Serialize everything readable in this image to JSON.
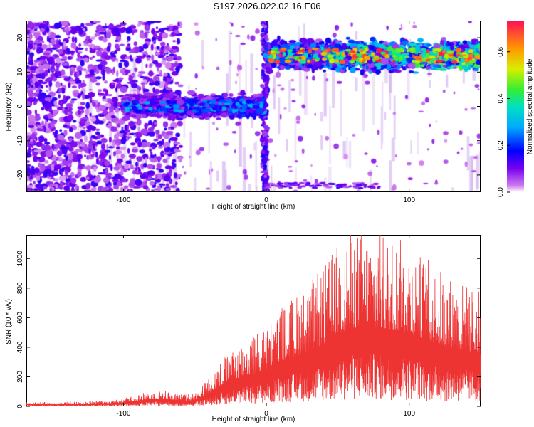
{
  "page_title": "S197.2026.022.02.16.E06",
  "chart_data": [
    {
      "type": "heatmap",
      "title": "",
      "xlabel": "Height of straight line (km)",
      "ylabel": "Frequency (Hz)",
      "xlim": [
        -168,
        150
      ],
      "ylim": [
        -25,
        25
      ],
      "x_ticks": [
        -100,
        0,
        100
      ],
      "x_tick_labels": [
        "-100",
        "0",
        "100"
      ],
      "y_ticks": [
        -20,
        -10,
        0,
        10,
        20
      ],
      "y_tick_labels": [
        "-20",
        "-10",
        "0",
        "10",
        "20"
      ],
      "grid": false,
      "colorbar": {
        "label": "Normalized spectral amplitude",
        "range": [
          0.0,
          0.73
        ],
        "ticks": [
          0.0,
          0.2,
          0.4,
          0.6
        ],
        "tick_labels": [
          "0.0",
          "0.2",
          "0.4",
          "0.6"
        ],
        "colormap": "rainbow (magenta-purple-blue-cyan-green-yellow-orange-red)"
      },
      "signal_band": [
        {
          "x_range": [
            -100,
            -2
          ],
          "frequency_center_hz": 0,
          "frequency_halfwidth_hz": 3,
          "peak_amplitude": 0.3
        },
        {
          "x_range": [
            0,
            150
          ],
          "frequency_center_hz": 15,
          "frequency_halfwidth_hz": 4,
          "peak_amplitude": 0.73
        }
      ]
    },
    {
      "type": "line",
      "title": "",
      "xlabel": "Height of straight line (km)",
      "ylabel": "SNR (10 * v/v)",
      "xlim": [
        -168,
        150
      ],
      "ylim": [
        0,
        1160
      ],
      "x_ticks": [
        -100,
        0,
        100
      ],
      "x_tick_labels": [
        "-100",
        "0",
        "100"
      ],
      "y_ticks": [
        0,
        200,
        400,
        600,
        800,
        1000
      ],
      "y_tick_labels": [
        "0",
        "200",
        "400",
        "600",
        "800",
        "1000"
      ],
      "grid": false,
      "series": [
        {
          "color": "#ee3333",
          "x": [
            -168,
            -150,
            -130,
            -110,
            -100,
            -90,
            -80,
            -70,
            -60,
            -50,
            -40,
            -30,
            -20,
            -10,
            0,
            10,
            20,
            30,
            40,
            50,
            60,
            70,
            80,
            90,
            100,
            110,
            120,
            130,
            140,
            150
          ],
          "values": [
            25,
            20,
            25,
            30,
            40,
            60,
            80,
            80,
            60,
            70,
            150,
            250,
            320,
            360,
            400,
            500,
            560,
            620,
            700,
            820,
            880,
            900,
            880,
            860,
            820,
            760,
            700,
            650,
            620,
            580
          ]
        }
      ]
    }
  ]
}
